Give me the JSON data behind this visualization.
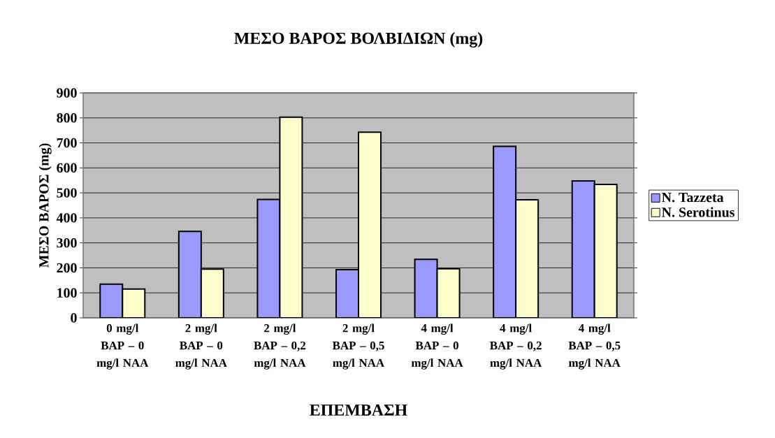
{
  "chart_data": {
    "type": "bar",
    "title": "ΜΕΣΟ ΒΑΡΟΣ ΒΟΛΒΙΔΙΩΝ  (mg)",
    "xlabel": "ΕΠΕΜΒΑΣΗ",
    "ylabel": "ΜΕΣΟ ΒΑΡΟΣ  (mg)",
    "categories": [
      "0 mg/l BAP – 0 mg/l NAA",
      "2 mg/l BAP – 0 mg/l NAA",
      "2 mg/l BAP – 0,2 mg/l NAA",
      "2 mg/l BAP – 0,5 mg/l NAA",
      "4 mg/l BAP – 0 mg/l NAA",
      "4 mg/l BAP – 0,2 mg/l NAA",
      "4 mg/l BAP – 0,5 mg/l NAA"
    ],
    "series": [
      {
        "name": "N. Tazzeta",
        "color": "#9999ff",
        "values": [
          135,
          346,
          474,
          193,
          234,
          686,
          548
        ]
      },
      {
        "name": "N. Serotinus",
        "color": "#ffffcc",
        "values": [
          115,
          195,
          803,
          743,
          196,
          472,
          534
        ]
      }
    ],
    "ylim": [
      0,
      900
    ],
    "yticks": [
      0,
      100,
      200,
      300,
      400,
      500,
      600,
      700,
      800,
      900
    ],
    "grid": "y",
    "legend": "right"
  }
}
